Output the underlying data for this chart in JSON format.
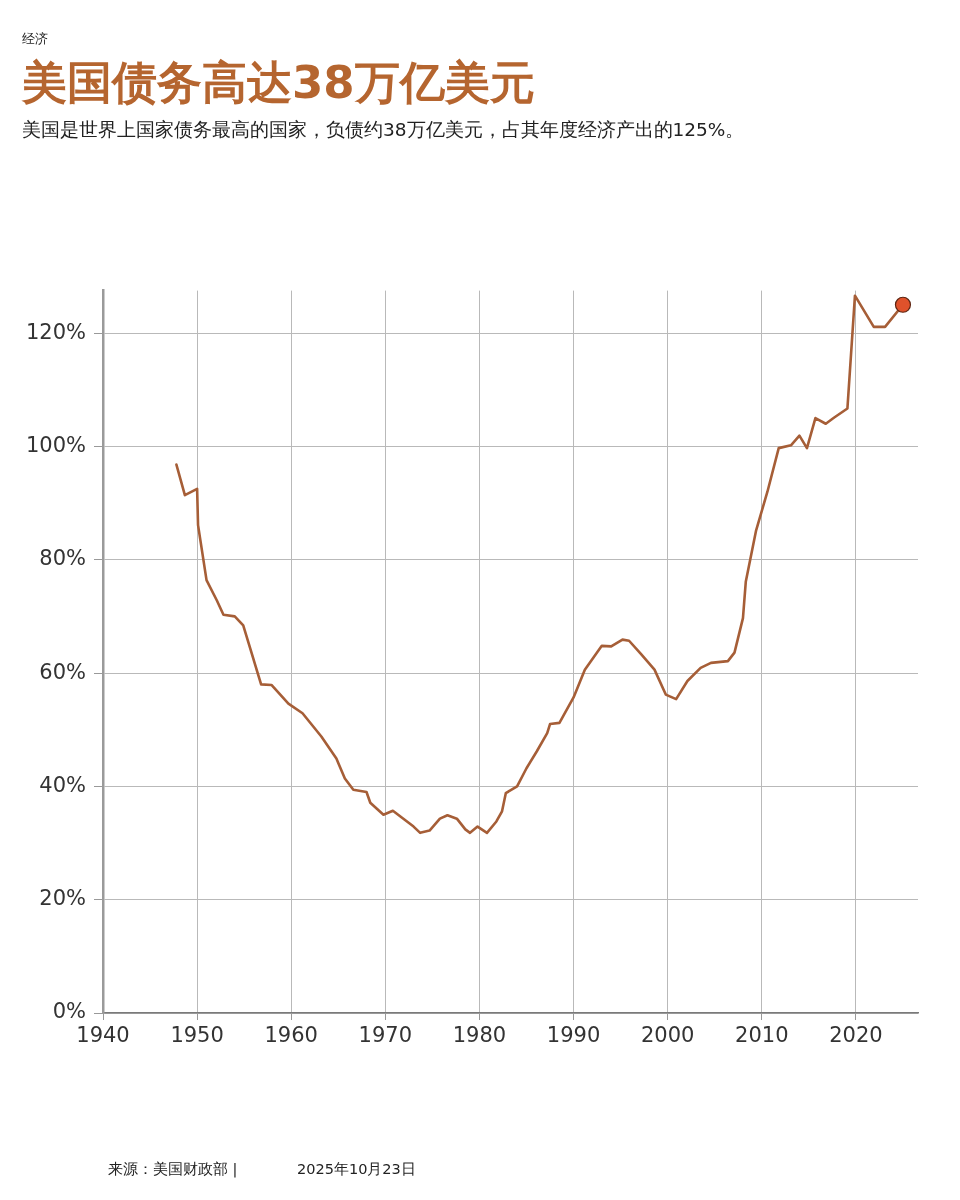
{
  "chart_data": {
    "type": "line",
    "title": "美国债务高达38万亿美元",
    "subtitle": "美国是世界上国家债务最高的国家，负债约38万亿美元，占其年度经济产出的125%。",
    "annotations": [
      "经济",
      "来源：美国财政部 |",
      "2025年10月23日"
    ],
    "xlim": [
      1940,
      2026.6
    ],
    "xticks": [
      1940,
      1950,
      1960,
      1970,
      1980,
      1990,
      2000,
      2010,
      2020
    ],
    "ylim": [
      0,
      127.5
    ],
    "yticks": [
      {
        "value": 0,
        "label": "0%"
      },
      {
        "value": 20,
        "label": "20%"
      },
      {
        "value": 40,
        "label": "40%"
      },
      {
        "value": 60,
        "label": "60%"
      },
      {
        "value": 80,
        "label": "80%"
      },
      {
        "value": 100,
        "label": "100%"
      },
      {
        "value": 120,
        "label": "120%"
      }
    ],
    "grid": true,
    "series": [
      {
        "type": "line",
        "color": "#a65e37",
        "marker": "none",
        "x": [
          1947.8,
          1948.7,
          1950.0,
          1950.1,
          1951.0,
          1952.1,
          1952.8,
          1954.0,
          1954.9,
          1956.8,
          1957.9,
          1959.7,
          1961.2,
          1963.2,
          1964.8,
          1965.7,
          1966.6,
          1968.0,
          1968.4,
          1969.8,
          1970.8,
          1973.0,
          1973.7,
          1974.7,
          1975.8,
          1976.6,
          1977.6,
          1978.5,
          1979.0,
          1979.8,
          1980.8,
          1981.8,
          1982.4,
          1982.8,
          1984.0,
          1985.0,
          1986.1,
          1987.2,
          1987.5,
          1988.5,
          1990.0,
          1991.2,
          1993.0,
          1994.0,
          1995.2,
          1995.9,
          1997.2,
          1998.6,
          1999.8,
          2000.9,
          2002.1,
          2003.5,
          2004.6,
          2006.4,
          2007.1,
          2008.0,
          2008.3,
          2009.4,
          2010.6,
          2011.8,
          2013.1,
          2014.0,
          2014.8,
          2015.7,
          2016.8,
          2017.7,
          2019.1,
          2019.9,
          2021.9,
          2023.1,
          2025.0
        ],
        "values": [
          96.8,
          91.4,
          92.5,
          86.1,
          76.4,
          72.8,
          70.3,
          70.0,
          68.4,
          58.0,
          57.9,
          54.6,
          52.9,
          48.8,
          44.9,
          41.4,
          39.4,
          39.0,
          37.1,
          35.0,
          35.7,
          32.9,
          31.8,
          32.2,
          34.3,
          34.9,
          34.3,
          32.4,
          31.8,
          32.9,
          31.8,
          33.8,
          35.6,
          38.8,
          40.0,
          43.2,
          46.2,
          49.4,
          51.0,
          51.2,
          55.7,
          60.6,
          64.8,
          64.7,
          65.9,
          65.7,
          63.3,
          60.6,
          56.2,
          55.4,
          58.6,
          60.9,
          61.8,
          62.1,
          63.6,
          69.7,
          76.1,
          85.2,
          92.0,
          99.7,
          100.2,
          101.9,
          99.7,
          105.0,
          104.0,
          105.1,
          106.7,
          126.6,
          121.1,
          121.1,
          125.0
        ]
      },
      {
        "type": "scatter",
        "color": "#e0522b",
        "marker": "circle",
        "x": [
          2025.0
        ],
        "values": [
          125.0
        ]
      }
    ]
  }
}
